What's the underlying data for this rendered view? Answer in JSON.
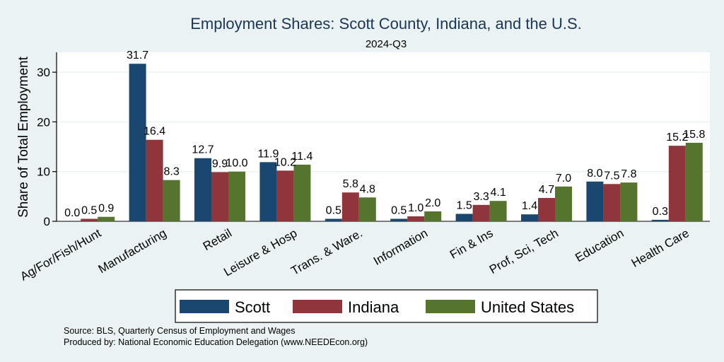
{
  "chart_data": {
    "type": "bar",
    "title": "Employment Shares: Scott County, Indiana, and the U.S.",
    "subtitle": "2024-Q3",
    "xlabel": "",
    "ylabel": "Share of Total Employment",
    "ylim": [
      0,
      34
    ],
    "yticks": [
      "0",
      "10",
      "20",
      "30"
    ],
    "categories": [
      "Ag/For/Fish/Hunt",
      "Manufacturing",
      "Retail",
      "Leisure & Hosp",
      "Trans. & Ware.",
      "Information",
      "Fin & Ins",
      "Prof, Sci, Tech",
      "Education",
      "Health Care"
    ],
    "series": [
      {
        "name": "Scott",
        "color": "#1a476f",
        "values": [
          0.0,
          31.7,
          12.7,
          11.9,
          0.5,
          0.5,
          1.5,
          1.4,
          8.0,
          0.3
        ],
        "labels": [
          "0.0",
          "31.7",
          "12.7",
          "11.9",
          "0.5",
          "0.5",
          "1.5",
          "1.4",
          "8.0",
          "0.3"
        ]
      },
      {
        "name": "Indiana",
        "color": "#90353b",
        "values": [
          0.5,
          16.4,
          9.9,
          10.2,
          5.8,
          1.0,
          3.3,
          4.7,
          7.5,
          15.2
        ],
        "labels": [
          "0.5",
          "16.4",
          "9.9",
          "10.2",
          "5.8",
          "1.0",
          "3.3",
          "4.7",
          "7.5",
          "15.2"
        ]
      },
      {
        "name": "United States",
        "color": "#55752f",
        "values": [
          0.9,
          8.3,
          10.0,
          11.4,
          4.8,
          2.0,
          4.1,
          7.0,
          7.8,
          15.8
        ],
        "labels": [
          "0.9",
          "8.3",
          "10.0",
          "11.4",
          "4.8",
          "2.0",
          "4.1",
          "7.0",
          "7.8",
          "15.8"
        ]
      }
    ],
    "legend_position": "bottom",
    "grid": true
  },
  "source": {
    "line1": "Source: BLS, Quarterly Census of Employment and Wages",
    "line2": "Produced by: National Economic Education Delegation (www.NEEDEcon.org)"
  }
}
